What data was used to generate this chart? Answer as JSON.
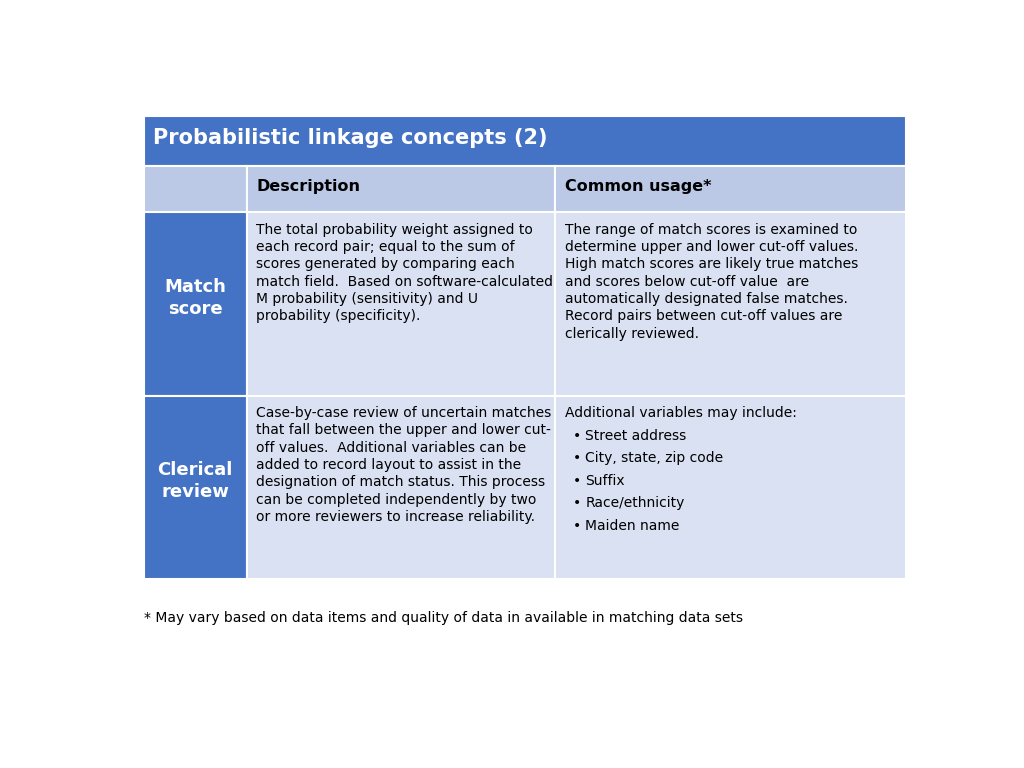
{
  "title": "Probabilistic linkage concepts (2)",
  "title_bg": "#4472C4",
  "title_color": "#FFFFFF",
  "header_bg": "#BBC8E6",
  "row1_label_bg": "#4472C4",
  "row2_label_bg": "#4472C4",
  "cell_bg": "#D9E1F2",
  "label_color": "#FFFFFF",
  "text_color": "#000000",
  "background_color": "#FFFFFF",
  "footnote": "* May vary based on data items and quality of data in available in matching data sets",
  "col_labels": [
    "",
    "Description",
    "Common usage*"
  ],
  "row_labels": [
    "Match\nscore",
    "Clerical\nreview"
  ],
  "row1_desc": "The total probability weight assigned to\neach record pair; equal to the sum of\nscores generated by comparing each\nmatch field.  Based on software-calculated\nM probability (sensitivity) and U\nprobability (specificity).",
  "row1_usage": "The range of match scores is examined to\ndetermine upper and lower cut-off values.\nHigh match scores are likely true matches\nand scores below cut-off value  are\nautomatically designated false matches.\nRecord pairs between cut-off values are\nclerically reviewed.",
  "row2_desc": "Case-by-case review of uncertain matches\nthat fall between the upper and lower cut-\noff values.  Additional variables can be\nadded to record layout to assist in the\ndesignation of match status. This process\ncan be completed independently by two\nor more reviewers to increase reliability.",
  "row2_usage_intro": "Additional variables may include:",
  "row2_usage_bullets": [
    "Street address",
    "City, state, zip code",
    "Suffix",
    "Race/ethnicity",
    "Maiden name"
  ],
  "font_size_title": 15,
  "font_size_header": 11.5,
  "font_size_body": 10,
  "font_size_label": 13,
  "font_size_footnote": 10
}
